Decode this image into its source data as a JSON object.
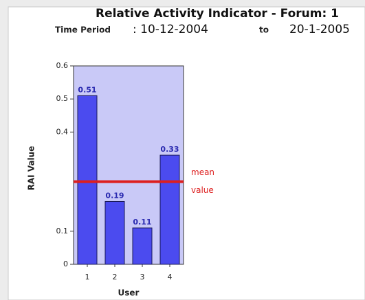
{
  "chart_data": {
    "type": "bar",
    "title": "Relative Activity Indicator - Forum: 1",
    "subtitle": {
      "label": "Time Period",
      "from": ": 10-12-2004",
      "joiner": "to",
      "to": "20-1-2005"
    },
    "xlabel": "User",
    "ylabel": "RAI Value",
    "categories": [
      "1",
      "2",
      "3",
      "4"
    ],
    "values": [
      0.51,
      0.19,
      0.11,
      0.33
    ],
    "color": "#4b4bef",
    "plot_background": "#c9c9f7",
    "ylim": [
      0,
      0.6
    ],
    "yticks": [
      0,
      0.1,
      0.4,
      0.5,
      0.6
    ],
    "mean_line": {
      "value": 0.25,
      "color": "#dd1f1f",
      "label": [
        "mean",
        "value"
      ]
    }
  }
}
